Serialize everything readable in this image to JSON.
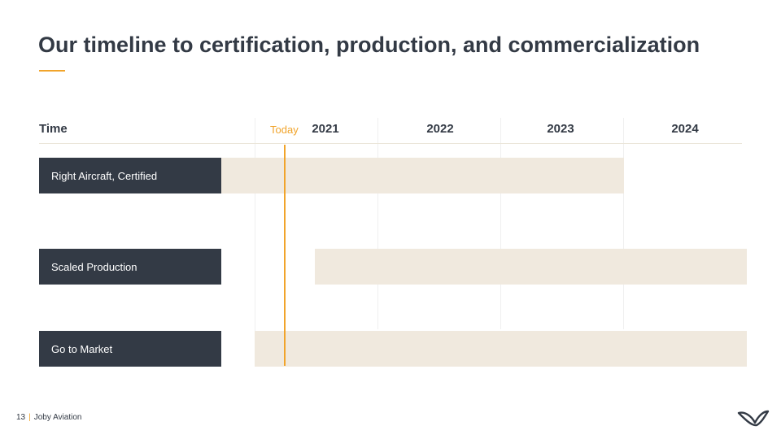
{
  "slide": {
    "title": "Our timeline to certification, production, and commercialization",
    "accent_color": "#f1a42b",
    "dark_color": "#333a45",
    "bar_color": "#f0e9de"
  },
  "timeline": {
    "time_label": "Time",
    "today_label": "Today",
    "years": [
      "2021",
      "2022",
      "2023",
      "2024"
    ],
    "rows": [
      {
        "label": "Right Aircraft, Certified"
      },
      {
        "label": "Scaled Production"
      },
      {
        "label": "Go to Market"
      }
    ]
  },
  "footer": {
    "page_number": "13",
    "separator": "|",
    "company": "Joby Aviation",
    "logo_icon": "joby-logo-icon"
  }
}
